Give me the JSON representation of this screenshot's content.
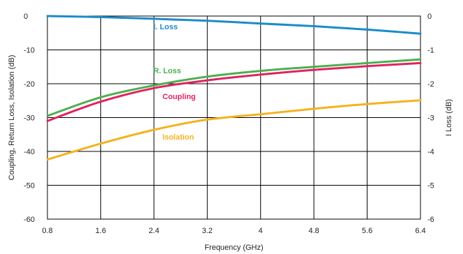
{
  "chart_data": {
    "type": "line",
    "xlabel": "Frequency (GHz)",
    "ylabel": "Coupling, Return Loss, Isolation (dB)",
    "y2label": "I Loss (dB)",
    "xlim": [
      0.8,
      6.4
    ],
    "ylim": [
      -60,
      0
    ],
    "y2lim": [
      -6,
      0
    ],
    "x_ticks": [
      "0.8",
      "1.6",
      "2.4",
      "3.2",
      "4",
      "4.8",
      "5.6",
      "6.4"
    ],
    "y_ticks": [
      "0",
      "-10",
      "-20",
      "-30",
      "-40",
      "-50",
      "-60"
    ],
    "y2_ticks": [
      "0",
      "-1",
      "-2",
      "-3",
      "-4",
      "-5",
      "-6"
    ],
    "grid": true,
    "series": [
      {
        "name": "I. Loss",
        "axis": "right",
        "color": "#1a8cc8",
        "x": [
          0.8,
          1.6,
          2.4,
          3.2,
          4.0,
          4.8,
          5.6,
          6.4
        ],
        "y": [
          0,
          -0.03,
          -0.08,
          -0.14,
          -0.22,
          -0.3,
          -0.4,
          -0.52
        ]
      },
      {
        "name": "R. Loss",
        "axis": "left",
        "color": "#4caf50",
        "x": [
          0.8,
          1.6,
          2.4,
          3.2,
          4.0,
          4.8,
          5.6,
          6.4
        ],
        "y": [
          -29.5,
          -24.0,
          -20.5,
          -17.9,
          -16.2,
          -15.0,
          -13.9,
          -12.8
        ]
      },
      {
        "name": "Coupling",
        "axis": "left",
        "color": "#e0245e",
        "x": [
          0.8,
          1.6,
          2.4,
          3.2,
          4.0,
          4.8,
          5.6,
          6.4
        ],
        "y": [
          -31.0,
          -25.3,
          -21.3,
          -19.0,
          -17.3,
          -15.9,
          -14.8,
          -13.9
        ]
      },
      {
        "name": "Isolation",
        "axis": "left",
        "color": "#f5b21e",
        "x": [
          0.8,
          1.6,
          2.4,
          3.2,
          4.0,
          4.8,
          5.6,
          6.4
        ],
        "y": [
          -42.4,
          -37.7,
          -33.6,
          -30.6,
          -29.0,
          -27.4,
          -26.0,
          -24.9
        ]
      }
    ]
  }
}
